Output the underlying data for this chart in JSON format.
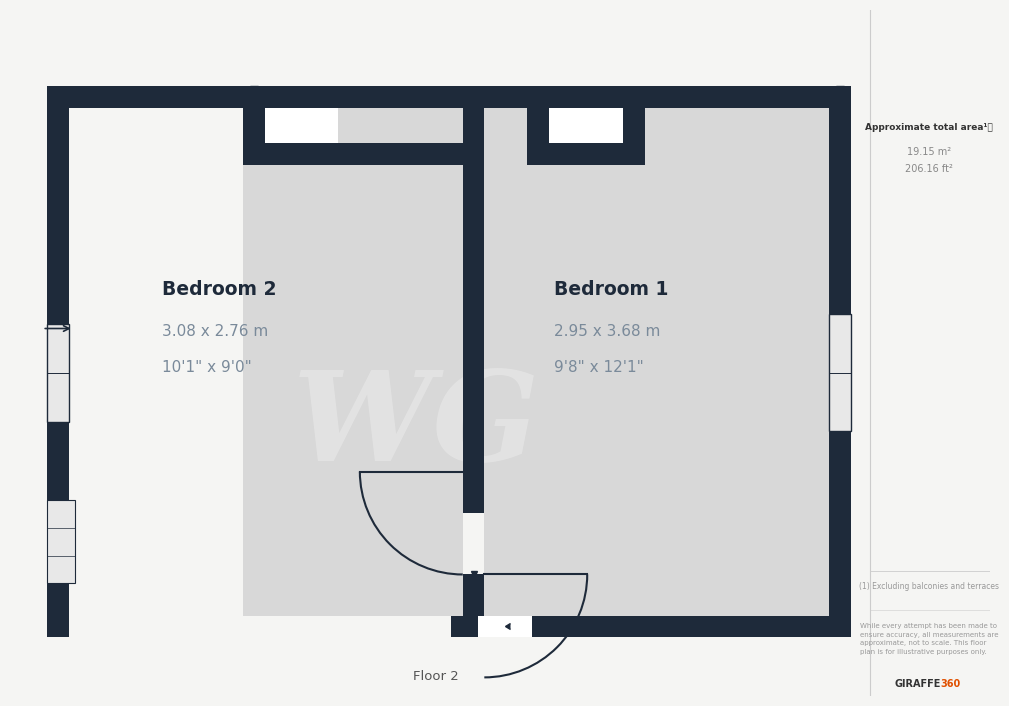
{
  "bg_color": "#f5f5f3",
  "wall_color": "#1e2a3a",
  "room_fill": "#d8d8d8",
  "white_fill": "#ffffff",
  "title_color": "#1e2a3a",
  "dim_color": "#7a8a9a",
  "sidebar_line_color": "#cccccc",
  "floor_label": "Floor 2",
  "bedroom1_name": "Bedroom 1",
  "bedroom1_dim1": "2.95 x 3.68 m",
  "bedroom1_dim2": "9'8\" x 12'1\"",
  "bedroom2_name": "Bedroom 2",
  "bedroom2_dim1": "3.08 x 2.76 m",
  "bedroom2_dim2": "10'1\" x 9'0\"",
  "area_title": "Approximate total area",
  "area_m2": "19.15 m²",
  "area_ft2": "206.16 ft²",
  "footnote1": "(1) Excluding balconies and terraces",
  "footnote2_l1": "While every attempt has been made to",
  "footnote2_l2": "ensure accuracy, all measurements are",
  "footnote2_l3": "approximate, not to scale. This floor",
  "footnote2_l4": "plan is for illustrative purposes only.",
  "brand1": "GIRAFFE",
  "brand2": "360",
  "watermark": "WG"
}
